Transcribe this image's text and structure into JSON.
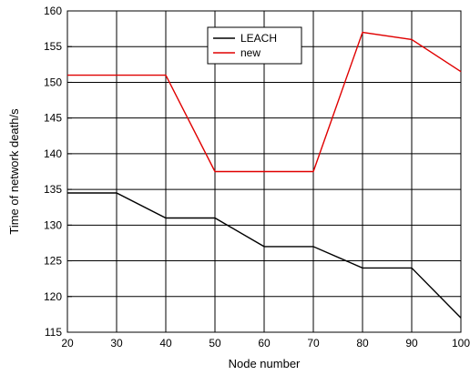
{
  "chart_data": {
    "type": "line",
    "title": "",
    "xlabel": "Node number",
    "ylabel": "Time of network death/s",
    "xlim": [
      20,
      100
    ],
    "ylim": [
      115,
      160
    ],
    "x_ticks": [
      20,
      30,
      40,
      50,
      60,
      70,
      80,
      90,
      100
    ],
    "y_ticks": [
      115,
      120,
      125,
      130,
      135,
      140,
      145,
      150,
      155,
      160
    ],
    "grid": true,
    "legend_position": "top-center",
    "x": [
      20,
      30,
      40,
      50,
      60,
      70,
      80,
      90,
      100
    ],
    "series": [
      {
        "name": "LEACH",
        "color": "#000000",
        "values": [
          134.5,
          134.5,
          131,
          131,
          127,
          127,
          124,
          124,
          117
        ]
      },
      {
        "name": "new",
        "color": "#e00000",
        "values": [
          151,
          151,
          151,
          137.5,
          137.5,
          137.5,
          157,
          156,
          151.5
        ]
      }
    ]
  }
}
